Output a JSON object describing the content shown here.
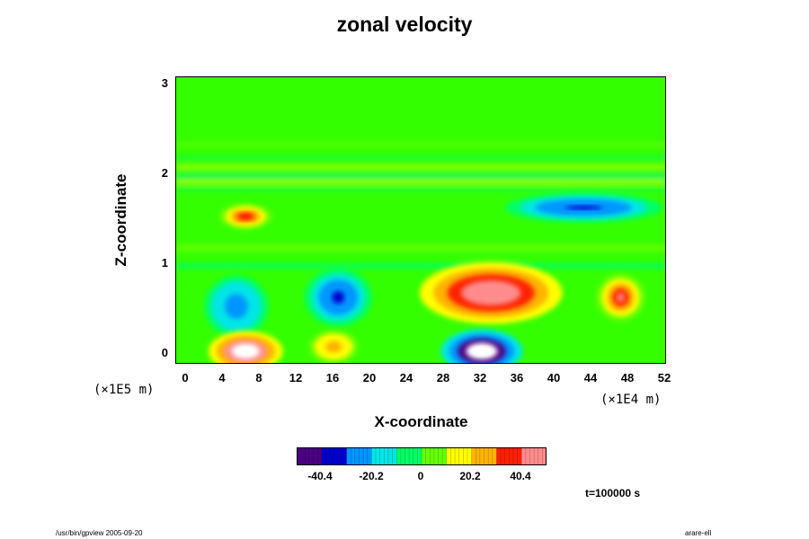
{
  "chart_data": {
    "type": "heatmap",
    "title": "zonal velocity",
    "xlabel": "X-coordinate",
    "ylabel": "Z-coordinate",
    "x_unit": "(×1E4 m)",
    "y_unit": "(×1E5 m)",
    "x_ticks": [
      "0",
      "4",
      "8",
      "12",
      "16",
      "20",
      "24",
      "28",
      "32",
      "36",
      "40",
      "44",
      "48",
      "52"
    ],
    "y_ticks": [
      "0",
      "1",
      "2",
      "3"
    ],
    "xlim": [
      -1,
      52
    ],
    "ylim": [
      -0.1,
      3.1
    ],
    "colorbar": {
      "ticks": [
        "-40.4",
        "-20.2",
        "0",
        "20.2",
        "40.4"
      ],
      "tick_values": [
        -40.4,
        -20.2,
        0,
        20.2,
        40.4
      ],
      "range": [
        -50,
        50
      ],
      "colors": [
        "#4b0082",
        "#0000cd",
        "#0096ff",
        "#00e6e6",
        "#00ff66",
        "#66ff00",
        "#ffff00",
        "#ffb400",
        "#ff2000",
        "#ff8c8c"
      ]
    },
    "features": [
      {
        "x": 32,
        "z": 0.05,
        "value": -55
      },
      {
        "x": 43,
        "z": 1.65,
        "value": -30
      },
      {
        "x": 16.5,
        "z": 0.65,
        "value": -30
      },
      {
        "x": 5.5,
        "z": 0.55,
        "value": -25
      },
      {
        "x": 33,
        "z": 0.7,
        "value": 40
      },
      {
        "x": 6.5,
        "z": 0.05,
        "value": 55
      },
      {
        "x": 47,
        "z": 0.65,
        "value": 35
      },
      {
        "x": 6.5,
        "z": 1.55,
        "value": 30
      },
      {
        "x": 16,
        "z": 0.1,
        "value": 25
      }
    ]
  },
  "footer": {
    "time": "t=100000 s",
    "left_note": "/usr/bin/gpview 2005-09-20",
    "right_note": "arare-ell"
  }
}
